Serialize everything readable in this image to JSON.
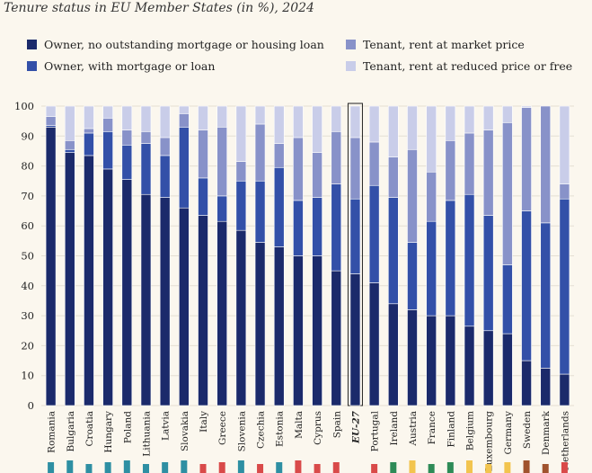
{
  "chart_data": {
    "type": "bar",
    "stacked": true,
    "title": "Tenure status in EU Member States (in %), 2024",
    "xlabel": "",
    "ylabel": "",
    "ylim": [
      0,
      100
    ],
    "yticks": [
      0,
      10,
      20,
      30,
      40,
      50,
      60,
      70,
      80,
      90,
      100
    ],
    "categories": [
      "Romania",
      "Bulgaria",
      "Croatia",
      "Hungary",
      "Poland",
      "Lithuania",
      "Latvia",
      "Slovakia",
      "Italy",
      "Greece",
      "Slovenia",
      "Czechia",
      "Estonia",
      "Malta",
      "Cyprus",
      "Spain",
      "EU-27",
      "Portugal",
      "Ireland",
      "Austria",
      "France",
      "Finland",
      "Belgium",
      "Luxembourg",
      "Germany",
      "Sweden",
      "Denmark",
      "Netherlands"
    ],
    "highlight_category": "EU-27",
    "series": [
      {
        "name": "Owner, no outstanding mortgage or housing loan",
        "color": "#1b2a6b",
        "values": [
          93,
          84.5,
          83.5,
          79,
          75.5,
          70.5,
          69.5,
          66,
          63.5,
          61.5,
          58.5,
          54.5,
          53,
          50,
          50,
          45,
          44,
          41,
          34,
          32,
          30,
          30,
          26.5,
          25,
          24,
          15,
          12.5,
          10.5
        ]
      },
      {
        "name": "Owner, with mortgage or loan",
        "color": "#3350a8",
        "values": [
          0.5,
          1,
          7.5,
          12.5,
          11.5,
          17,
          14,
          27,
          12.5,
          8.5,
          16.5,
          20.5,
          26.5,
          18.5,
          19.5,
          29,
          25,
          32.5,
          35.5,
          22.5,
          31.5,
          38.5,
          44,
          38.5,
          23,
          50,
          48.5,
          58.5
        ]
      },
      {
        "name": "Tenant, rent at market price",
        "color": "#8892c9",
        "values": [
          3,
          3,
          1.5,
          4.5,
          5,
          4,
          6,
          4.5,
          16,
          23,
          6.5,
          19,
          8,
          21,
          15,
          17.5,
          20.5,
          14.5,
          13.5,
          31,
          16.5,
          20,
          20.5,
          28.5,
          47.5,
          34.5,
          39,
          5
        ]
      },
      {
        "name": "Tenant, rent at reduced price or free",
        "color": "#c9cde9",
        "values": [
          3.5,
          11.5,
          7.5,
          4,
          8,
          8.5,
          10.5,
          2.5,
          8,
          7,
          18.5,
          6,
          12.5,
          10.5,
          15.5,
          8.5,
          10.5,
          12,
          17,
          14.5,
          22,
          11.5,
          9,
          8,
          5.5,
          0.5,
          0,
          26
        ]
      }
    ],
    "country_marker_colors": [
      "#2e8fa3",
      "#2e8fa3",
      "#2e8fa3",
      "#2e8fa3",
      "#2e8fa3",
      "#2e8fa3",
      "#2e8fa3",
      "#2e8fa3",
      "#d94a49",
      "#d94a49",
      "#2e8fa3",
      "#d94a49",
      "#2e8fa3",
      "#d94a49",
      "#d94a49",
      "#d94a49",
      "#ffffff",
      "#d94a49",
      "#2e8b57",
      "#f2c44e",
      "#2e8b57",
      "#2e8b57",
      "#f2c44e",
      "#f2c44e",
      "#f2c44e",
      "#a0522d",
      "#a0522d",
      "#d94a49"
    ]
  }
}
